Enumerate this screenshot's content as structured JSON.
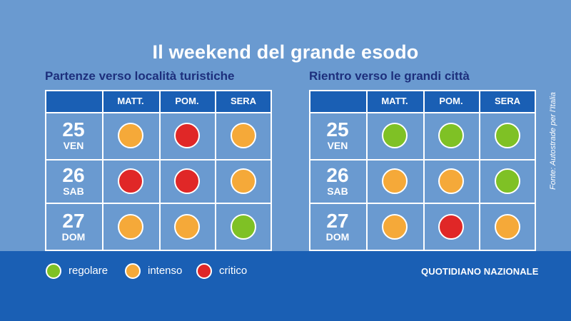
{
  "title": "Il weekend del grande esodo",
  "colors": {
    "regolare": "#7fc125",
    "intenso": "#f5a939",
    "critico": "#e02727"
  },
  "columns": [
    "MATT.",
    "POM.",
    "SERA"
  ],
  "panels": [
    {
      "title": "Partenze verso località turistiche",
      "rows": [
        {
          "num": "25",
          "day": "VEN",
          "levels": [
            "intenso",
            "critico",
            "intenso"
          ]
        },
        {
          "num": "26",
          "day": "SAB",
          "levels": [
            "critico",
            "critico",
            "intenso"
          ]
        },
        {
          "num": "27",
          "day": "DOM",
          "levels": [
            "intenso",
            "intenso",
            "regolare"
          ]
        }
      ]
    },
    {
      "title": "Rientro verso le grandi città",
      "rows": [
        {
          "num": "25",
          "day": "VEN",
          "levels": [
            "regolare",
            "regolare",
            "regolare"
          ]
        },
        {
          "num": "26",
          "day": "SAB",
          "levels": [
            "intenso",
            "intenso",
            "regolare"
          ]
        },
        {
          "num": "27",
          "day": "DOM",
          "levels": [
            "intenso",
            "critico",
            "intenso"
          ]
        }
      ]
    }
  ],
  "legend": [
    {
      "key": "regolare",
      "label": "regolare"
    },
    {
      "key": "intenso",
      "label": "intenso"
    },
    {
      "key": "critico",
      "label": "critico"
    }
  ],
  "source": "Fonte: Autostrade per l'Italia",
  "brand": "QUOTIDIANO NAZIONALE"
}
